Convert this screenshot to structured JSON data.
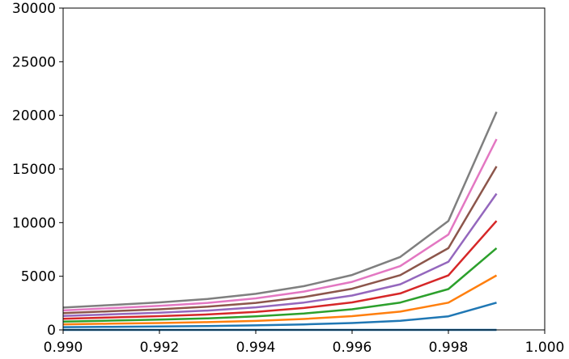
{
  "chart_data": {
    "type": "line",
    "title": "",
    "xlabel": "",
    "ylabel": "",
    "xlim": [
      0.99,
      1.0
    ],
    "ylim": [
      0,
      30000
    ],
    "grid": false,
    "legend": "none",
    "x": [
      0.99,
      0.991,
      0.992,
      0.993,
      0.994,
      0.995,
      0.996,
      0.997,
      0.998,
      0.999
    ],
    "xticks": [
      "0.990",
      "0.992",
      "0.994",
      "0.996",
      "0.998",
      "1.000"
    ],
    "xtick_values": [
      0.99,
      0.992,
      0.994,
      0.996,
      0.998,
      1.0
    ],
    "yticks": [
      "0",
      "5000",
      "10000",
      "15000",
      "20000",
      "25000",
      "30000"
    ],
    "ytick_values": [
      0,
      5000,
      10000,
      15000,
      20000,
      25000,
      30000
    ],
    "series": [
      {
        "color": "#1f77b4",
        "values": [
          260,
          290,
          320,
          360,
          420,
          510,
          640,
          850,
          1270,
          2540
        ]
      },
      {
        "color": "#1f77b4",
        "values": [
          0,
          0,
          0,
          0,
          0,
          0,
          0,
          0,
          0,
          0
        ]
      },
      {
        "color": "#ff7f0e",
        "values": [
          520,
          580,
          640,
          720,
          840,
          1020,
          1280,
          1700,
          2540,
          5080
        ]
      },
      {
        "color": "#2ca02c",
        "values": [
          780,
          870,
          960,
          1080,
          1260,
          1530,
          1920,
          2550,
          3810,
          7620
        ]
      },
      {
        "color": "#d62728",
        "values": [
          1040,
          1160,
          1280,
          1440,
          1680,
          2040,
          2560,
          3400,
          5080,
          10160
        ]
      },
      {
        "color": "#9467bd",
        "values": [
          1300,
          1450,
          1600,
          1800,
          2100,
          2550,
          3200,
          4250,
          6350,
          12700
        ]
      },
      {
        "color": "#8c564b",
        "values": [
          1560,
          1740,
          1920,
          2160,
          2520,
          3060,
          3840,
          5100,
          7620,
          15240
        ]
      },
      {
        "color": "#e377c2",
        "values": [
          1820,
          2030,
          2240,
          2520,
          2940,
          3570,
          4480,
          5950,
          8890,
          17780
        ]
      },
      {
        "color": "#7f7f7f",
        "values": [
          2080,
          2320,
          2560,
          2880,
          3360,
          4080,
          5120,
          6800,
          10160,
          20320
        ]
      }
    ]
  }
}
